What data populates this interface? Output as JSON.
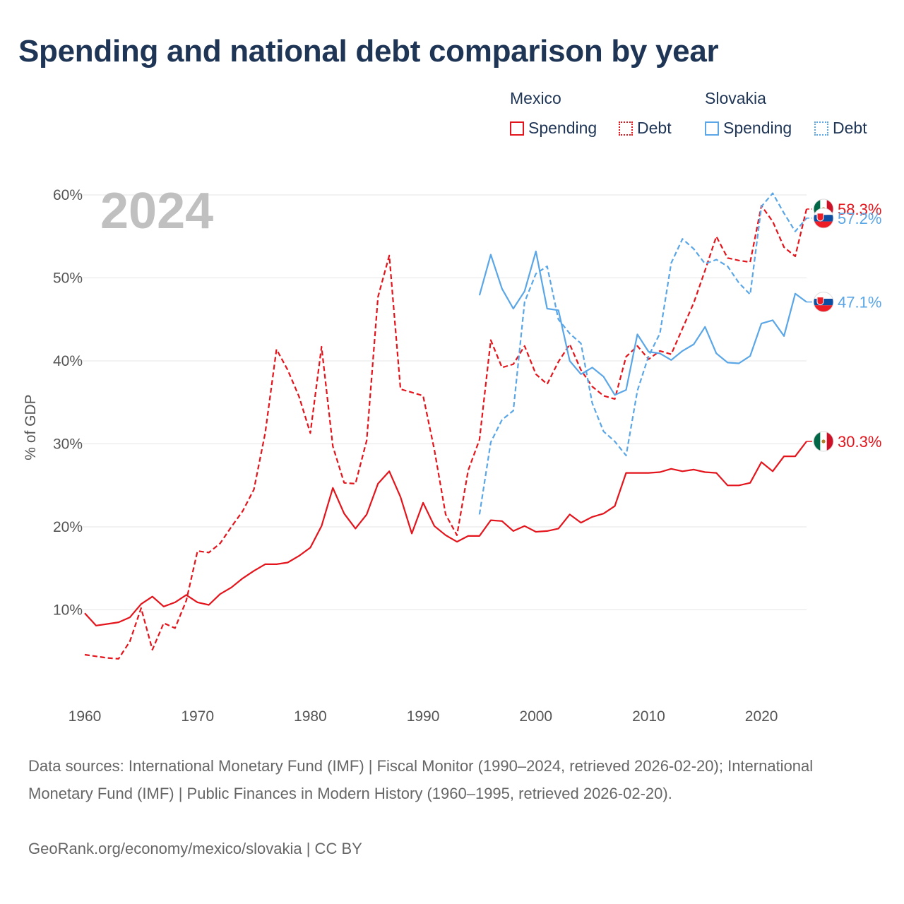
{
  "title": "Spending and national debt comparison by year",
  "legend": {
    "groups": [
      {
        "name": "Mexico",
        "color": "#e3141b",
        "items": [
          {
            "label": "Spending",
            "style": "solid"
          },
          {
            "label": "Debt",
            "style": "dotted"
          }
        ]
      },
      {
        "name": "Slovakia",
        "color": "#5aa6e6",
        "items": [
          {
            "label": "Spending",
            "style": "solid"
          },
          {
            "label": "Debt",
            "style": "dotted"
          }
        ]
      }
    ]
  },
  "footer": {
    "sources": "Data sources: International Monetary Fund (IMF) | Fiscal Monitor (1990–2024, retrieved 2026-02-20); International Monetary Fund (IMF) | Public Finances in Modern History (1960–1995, retrieved 2026-02-20).",
    "credit": "GeoRank.org/economy/mexico/slovakia | CC BY"
  },
  "chart_data": {
    "type": "line",
    "ylabel": "% of GDP",
    "xlabel": "",
    "year_watermark": "2024",
    "xlim": [
      1960,
      2024
    ],
    "ylim": [
      0,
      60
    ],
    "x_ticks": [
      1960,
      1970,
      1980,
      1990,
      2000,
      2010,
      2020
    ],
    "x_tick_labels": [
      "1960",
      "1970",
      "1980",
      "1990",
      "2000",
      "2010",
      "2020"
    ],
    "y_ticks": [
      10,
      20,
      30,
      40,
      50,
      60
    ],
    "y_tick_labels": [
      "10%",
      "20%",
      "30%",
      "40%",
      "50%",
      "60%"
    ],
    "grid": true,
    "series": [
      {
        "name": "Mexico Spending",
        "country": "Mexico",
        "metric": "Spending",
        "color": "#e3141b",
        "dashed": false,
        "end_label": "30.3%",
        "x": [
          1960,
          1961,
          1962,
          1963,
          1964,
          1965,
          1966,
          1967,
          1968,
          1969,
          1970,
          1971,
          1972,
          1973,
          1974,
          1975,
          1976,
          1977,
          1978,
          1979,
          1980,
          1981,
          1982,
          1983,
          1984,
          1985,
          1986,
          1987,
          1988,
          1989,
          1990,
          1991,
          1992,
          1993,
          1994,
          1995,
          1996,
          1997,
          1998,
          1999,
          2000,
          2001,
          2002,
          2003,
          2004,
          2005,
          2006,
          2007,
          2008,
          2009,
          2010,
          2011,
          2012,
          2013,
          2014,
          2015,
          2016,
          2017,
          2018,
          2019,
          2020,
          2021,
          2022,
          2023,
          2024
        ],
        "values": [
          9.6,
          8.1,
          8.3,
          8.5,
          9.1,
          10.7,
          11.6,
          10.4,
          10.9,
          11.8,
          10.9,
          10.6,
          11.9,
          12.7,
          13.8,
          14.7,
          15.5,
          15.5,
          15.7,
          16.5,
          17.5,
          20.1,
          24.7,
          21.6,
          19.8,
          21.5,
          25.2,
          26.7,
          23.6,
          19.2,
          22.9,
          20.1,
          19.0,
          18.2,
          18.9,
          18.9,
          20.8,
          20.7,
          19.5,
          20.1,
          19.4,
          19.5,
          19.8,
          21.5,
          20.5,
          21.2,
          21.6,
          22.5,
          26.5,
          26.5,
          26.5,
          26.6,
          27.0,
          26.7,
          26.9,
          26.6,
          26.5,
          25.0,
          25.0,
          25.3,
          27.8,
          26.7,
          28.5,
          28.5,
          30.3
        ]
      },
      {
        "name": "Mexico Debt",
        "country": "Mexico",
        "metric": "Debt",
        "color": "#e3141b",
        "dashed": true,
        "end_label": "58.3%",
        "x": [
          1960,
          1961,
          1962,
          1963,
          1964,
          1965,
          1966,
          1967,
          1968,
          1969,
          1970,
          1971,
          1972,
          1973,
          1974,
          1975,
          1976,
          1977,
          1978,
          1979,
          1980,
          1981,
          1982,
          1983,
          1984,
          1985,
          1986,
          1987,
          1988,
          1989,
          1990,
          1991,
          1992,
          1993,
          1994,
          1995,
          1996,
          1997,
          1998,
          1999,
          2000,
          2001,
          2002,
          2003,
          2004,
          2005,
          2006,
          2007,
          2008,
          2009,
          2010,
          2011,
          2012,
          2013,
          2014,
          2015,
          2016,
          2017,
          2018,
          2019,
          2020,
          2021,
          2022,
          2023,
          2024
        ],
        "values": [
          4.6,
          4.4,
          4.2,
          4.1,
          6.2,
          10.2,
          5.2,
          8.4,
          7.8,
          11.1,
          17.1,
          16.9,
          18.0,
          20.0,
          21.9,
          24.5,
          31.3,
          41.4,
          38.9,
          35.7,
          31.3,
          41.7,
          29.7,
          25.3,
          25.2,
          30.4,
          47.7,
          52.7,
          36.6,
          36.2,
          35.8,
          29.3,
          21.5,
          19.0,
          26.8,
          30.5,
          42.5,
          39.2,
          39.6,
          41.8,
          38.4,
          37.2,
          39.9,
          42.0,
          38.9,
          36.9,
          35.8,
          35.4,
          40.5,
          41.8,
          40.2,
          41.2,
          40.8,
          43.9,
          47.0,
          50.9,
          55.0,
          52.4,
          52.1,
          51.9,
          58.7,
          56.8,
          53.7,
          52.6,
          58.3
        ]
      },
      {
        "name": "Slovakia Spending",
        "country": "Slovakia",
        "metric": "Spending",
        "color": "#5aa6e6",
        "dashed": false,
        "end_label": "47.1%",
        "x": [
          1995,
          1996,
          1997,
          1998,
          1999,
          2000,
          2001,
          2002,
          2003,
          2004,
          2005,
          2006,
          2007,
          2008,
          2009,
          2010,
          2011,
          2012,
          2013,
          2014,
          2015,
          2016,
          2017,
          2018,
          2019,
          2020,
          2021,
          2022,
          2023,
          2024
        ],
        "values": [
          47.9,
          52.8,
          48.7,
          46.3,
          48.4,
          53.2,
          46.3,
          46.1,
          40.0,
          38.4,
          39.2,
          38.1,
          35.9,
          36.5,
          43.2,
          41.1,
          40.9,
          40.1,
          41.2,
          42.0,
          44.1,
          40.9,
          39.8,
          39.7,
          40.6,
          44.5,
          44.9,
          43.0,
          48.1,
          47.1
        ]
      },
      {
        "name": "Slovakia Debt",
        "country": "Slovakia",
        "metric": "Debt",
        "color": "#5aa6e6",
        "dashed": true,
        "end_label": "57.2%",
        "x": [
          1995,
          1996,
          1997,
          1998,
          1999,
          2000,
          2001,
          2002,
          2003,
          2004,
          2005,
          2006,
          2007,
          2008,
          2009,
          2010,
          2011,
          2012,
          2013,
          2014,
          2015,
          2016,
          2017,
          2018,
          2019,
          2020,
          2021,
          2022,
          2023,
          2024
        ],
        "values": [
          21.5,
          30.2,
          32.9,
          34.0,
          47.1,
          50.5,
          51.4,
          45.0,
          43.3,
          42.1,
          34.9,
          31.5,
          30.3,
          28.6,
          36.4,
          40.6,
          43.3,
          51.8,
          54.7,
          53.5,
          51.7,
          52.2,
          51.4,
          49.4,
          48.0,
          58.6,
          60.2,
          57.8,
          55.6,
          57.2
        ]
      }
    ]
  }
}
